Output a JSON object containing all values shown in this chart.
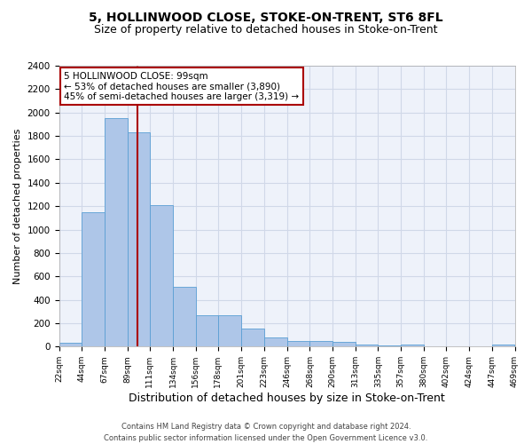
{
  "title": "5, HOLLINWOOD CLOSE, STOKE-ON-TRENT, ST6 8FL",
  "subtitle": "Size of property relative to detached houses in Stoke-on-Trent",
  "xlabel": "Distribution of detached houses by size in Stoke-on-Trent",
  "ylabel": "Number of detached properties",
  "footer_line1": "Contains HM Land Registry data © Crown copyright and database right 2024.",
  "footer_line2": "Contains public sector information licensed under the Open Government Licence v3.0.",
  "annotation_line1": "5 HOLLINWOOD CLOSE: 99sqm",
  "annotation_line2": "← 53% of detached houses are smaller (3,890)",
  "annotation_line3": "45% of semi-detached houses are larger (3,319) →",
  "bar_values": [
    30,
    1150,
    1950,
    1830,
    1210,
    510,
    265,
    265,
    155,
    80,
    50,
    45,
    40,
    20,
    10,
    15,
    5,
    5,
    5,
    20
  ],
  "bin_edges": [
    22,
    44,
    67,
    89,
    111,
    134,
    156,
    178,
    201,
    223,
    246,
    268,
    290,
    313,
    335,
    357,
    380,
    402,
    424,
    447,
    469
  ],
  "tick_labels": [
    "22sqm",
    "44sqm",
    "67sqm",
    "89sqm",
    "111sqm",
    "134sqm",
    "156sqm",
    "178sqm",
    "201sqm",
    "223sqm",
    "246sqm",
    "268sqm",
    "290sqm",
    "313sqm",
    "335sqm",
    "357sqm",
    "380sqm",
    "402sqm",
    "424sqm",
    "447sqm",
    "469sqm"
  ],
  "bar_color": "#aec6e8",
  "bar_edge_color": "#5a9fd4",
  "red_line_x": 99,
  "ylim": [
    0,
    2400
  ],
  "yticks": [
    0,
    200,
    400,
    600,
    800,
    1000,
    1200,
    1400,
    1600,
    1800,
    2000,
    2200,
    2400
  ],
  "grid_color": "#d0d8e8",
  "bg_color": "#eef2fa",
  "title_fontsize": 10,
  "subtitle_fontsize": 9,
  "ylabel_fontsize": 8,
  "xlabel_fontsize": 9,
  "tick_fontsize": 6.5,
  "ytick_fontsize": 7.5,
  "annotation_box_color": "#aa0000",
  "annotation_text_fontsize": 7.5,
  "footer_fontsize": 6
}
